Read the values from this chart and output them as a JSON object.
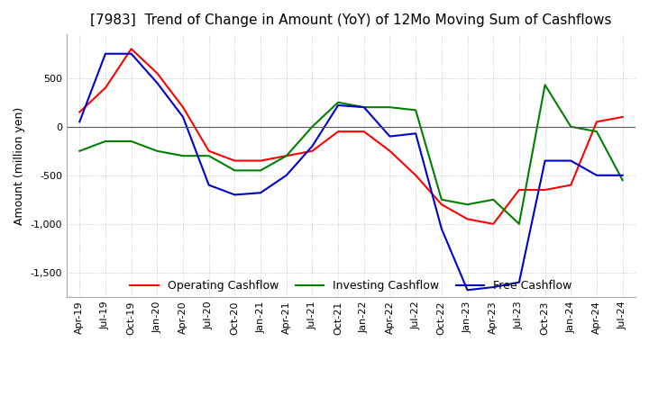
{
  "title": "[7983]  Trend of Change in Amount (YoY) of 12Mo Moving Sum of Cashflows",
  "ylabel": "Amount (million yen)",
  "title_fontsize": 11,
  "label_fontsize": 9,
  "tick_fontsize": 8,
  "ylim": [
    -1750,
    950
  ],
  "yticks": [
    500,
    0,
    -500,
    -1000,
    -1500
  ],
  "background_color": "#ffffff",
  "grid_color": "#bbbbbb",
  "x_labels": [
    "Apr-19",
    "Jul-19",
    "Oct-19",
    "Jan-20",
    "Apr-20",
    "Jul-20",
    "Oct-20",
    "Jan-21",
    "Apr-21",
    "Jul-21",
    "Oct-21",
    "Jan-22",
    "Apr-22",
    "Jul-22",
    "Oct-22",
    "Jan-23",
    "Apr-23",
    "Jul-23",
    "Oct-23",
    "Jan-24",
    "Apr-24",
    "Jul-24"
  ],
  "operating_cashflow": [
    150,
    400,
    800,
    550,
    200,
    -250,
    -350,
    -350,
    -300,
    -250,
    -50,
    -50,
    -250,
    -500,
    -800,
    -950,
    -1000,
    -650,
    -650,
    -600,
    50,
    100
  ],
  "investing_cashflow": [
    -250,
    -150,
    -150,
    -250,
    -300,
    -300,
    -450,
    -450,
    -300,
    0,
    250,
    200,
    200,
    170,
    -750,
    -800,
    -750,
    -1000,
    430,
    0,
    -50,
    -550
  ],
  "free_cashflow": [
    50,
    750,
    750,
    450,
    100,
    -600,
    -700,
    -680,
    -500,
    -200,
    220,
    200,
    -100,
    -70,
    -1050,
    -1680,
    -1650,
    -1600,
    -350,
    -350,
    -500,
    -500
  ],
  "op_color": "#ff0000",
  "inv_color": "#008000",
  "free_color": "#0000cd",
  "legend_labels": [
    "Operating Cashflow",
    "Investing Cashflow",
    "Free Cashflow"
  ]
}
